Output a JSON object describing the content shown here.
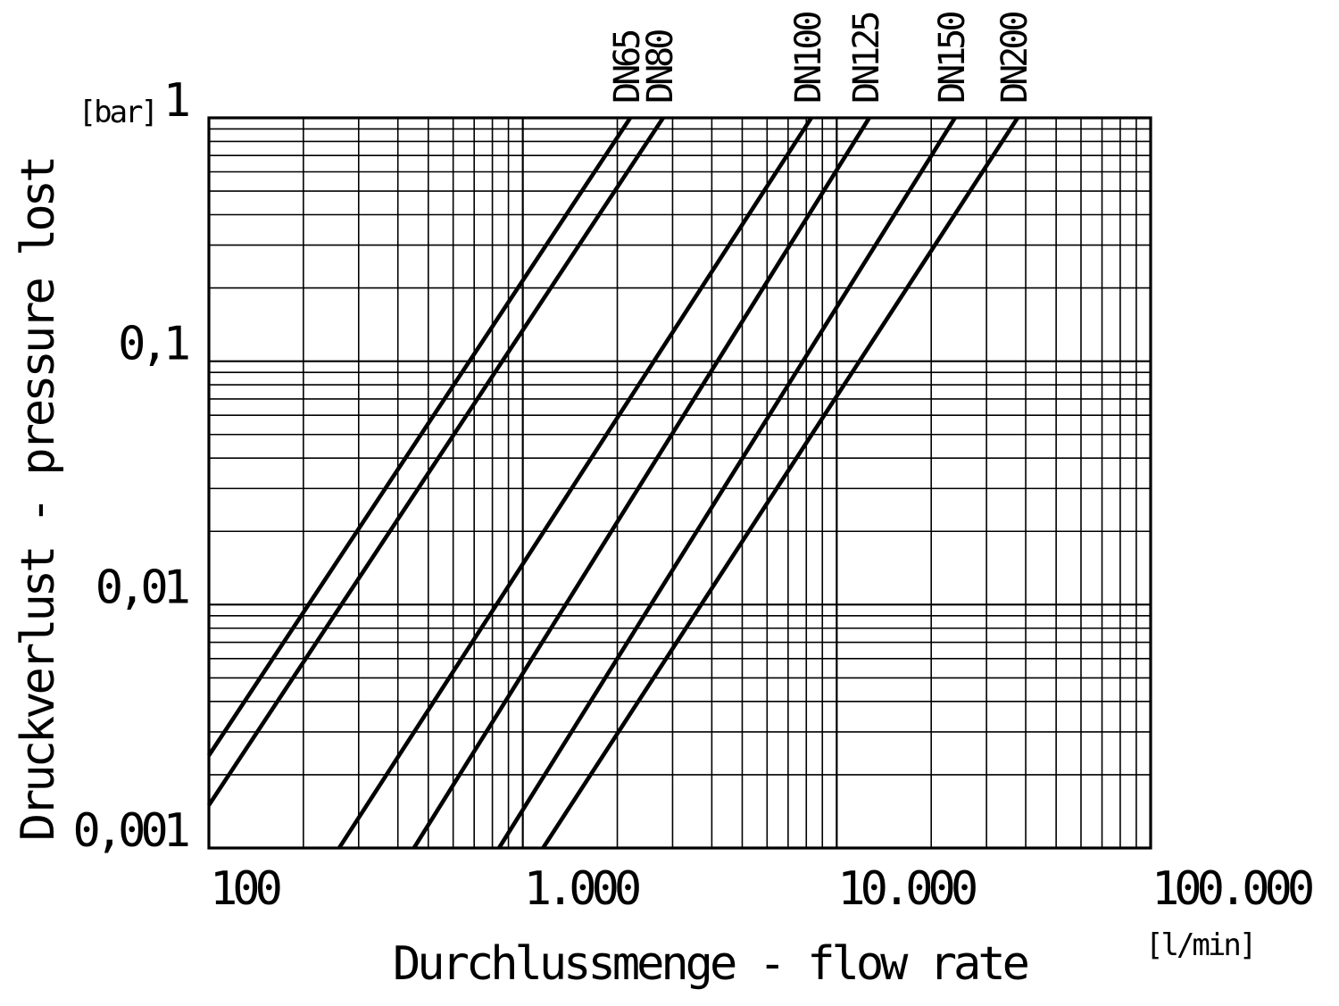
{
  "chart_data": {
    "type": "line",
    "title": "",
    "x_axis": {
      "label": "Durchlussmenge - flow rate",
      "unit": "[l/min]",
      "scale": "log",
      "range": [
        100,
        100000
      ],
      "ticks": [
        {
          "value": 100,
          "label": "100"
        },
        {
          "value": 1000,
          "label": "1.000"
        },
        {
          "value": 10000,
          "label": "10.000"
        },
        {
          "value": 100000,
          "label": "100.000"
        }
      ]
    },
    "y_axis": {
      "label": "Druckverlust - pressure lost",
      "unit": "[bar]",
      "scale": "log",
      "range": [
        0.001,
        1
      ],
      "ticks": [
        {
          "value": 1,
          "label": "1"
        },
        {
          "value": 0.1,
          "label": "0,1"
        },
        {
          "value": 0.01,
          "label": "0,01"
        },
        {
          "value": 0.001,
          "label": "0,001"
        }
      ]
    },
    "grid": {
      "style": "full log-log grid",
      "minor_multipliers": [
        2,
        3,
        4,
        5,
        6,
        7,
        8,
        9
      ]
    },
    "series": [
      {
        "name": "DN65",
        "points": [
          [
            100,
            0.0024
          ],
          [
            2200,
            1.0
          ]
        ]
      },
      {
        "name": "DN80",
        "points": [
          [
            100,
            0.0015
          ],
          [
            2800,
            1.0
          ]
        ]
      },
      {
        "name": "DN100",
        "points": [
          [
            260,
            0.001
          ],
          [
            8300,
            1.0
          ]
        ]
      },
      {
        "name": "DN125",
        "points": [
          [
            450,
            0.001
          ],
          [
            12700,
            1.0
          ]
        ]
      },
      {
        "name": "DN150",
        "points": [
          [
            840,
            0.001
          ],
          [
            23800,
            1.0
          ]
        ]
      },
      {
        "name": "DN200",
        "points": [
          [
            1160,
            0.001
          ],
          [
            37700,
            1.0
          ]
        ]
      }
    ],
    "style": {
      "line_color": "#000000",
      "grid_color": "#000000",
      "background": "#ffffff"
    }
  }
}
